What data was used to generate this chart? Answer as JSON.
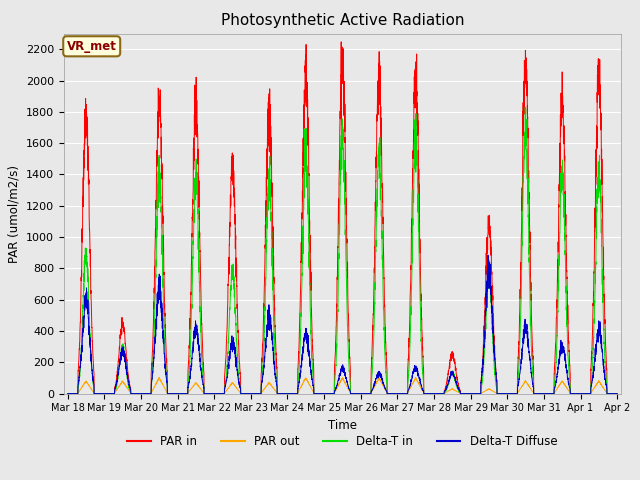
{
  "title": "Photosynthetic Active Radiation",
  "ylabel": "PAR (umol/m2/s)",
  "xlabel": "Time",
  "ylim": [
    0,
    2300
  ],
  "yticks": [
    0,
    200,
    400,
    600,
    800,
    1000,
    1200,
    1400,
    1600,
    1800,
    2000,
    2200
  ],
  "xtick_labels": [
    "Mar 18",
    "Mar 19",
    "Mar 20",
    "Mar 21",
    "Mar 22",
    "Mar 23",
    "Mar 24",
    "Mar 25",
    "Mar 26",
    "Mar 27",
    "Mar 28",
    "Mar 29",
    "Mar 30",
    "Mar 31",
    "Apr 1",
    "Apr 2"
  ],
  "background_color": "#e8e8e8",
  "plot_bg_color": "#e8e8e8",
  "annotation_text": "VR_met",
  "annotation_bg": "#ffffdd",
  "annotation_border": "#8B6914",
  "colors": {
    "PAR_in": "#ff0000",
    "PAR_out": "#ffa500",
    "Delta_T_in": "#00dd00",
    "Delta_T_Diffuse": "#0000cc"
  },
  "legend_labels": [
    "PAR in",
    "PAR out",
    "Delta-T in",
    "Delta-T Diffuse"
  ],
  "par_in_peaks": [
    1780,
    440,
    1870,
    1840,
    1460,
    1820,
    2040,
    2150,
    2040,
    2040,
    250,
    1080,
    2090,
    1860,
    2050
  ],
  "par_out_peaks": [
    80,
    80,
    100,
    70,
    70,
    70,
    100,
    100,
    100,
    100,
    30,
    30,
    80,
    80,
    80
  ],
  "delta_in_peaks": [
    900,
    300,
    1440,
    1380,
    800,
    1380,
    1560,
    1660,
    1540,
    1660,
    130,
    760,
    1720,
    1420,
    1430
  ],
  "delta_diff_peaks": [
    590,
    270,
    660,
    410,
    330,
    490,
    380,
    160,
    130,
    165,
    130,
    770,
    430,
    300,
    410
  ],
  "linewidth": 0.7
}
